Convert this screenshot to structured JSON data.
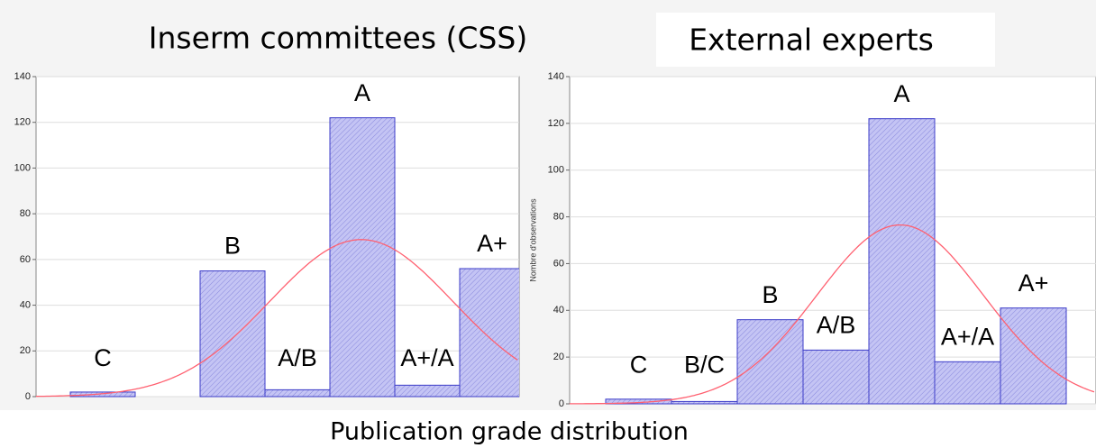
{
  "chart_data": [
    {
      "type": "bar",
      "title": "Inserm committees (CSS)",
      "categories": [
        "C",
        null,
        "B",
        "A/B",
        "A",
        "A+/A",
        "A+"
      ],
      "values": [
        2,
        0,
        55,
        3,
        122,
        5,
        56
      ],
      "color": "#b4b4f0",
      "edge_color": "#3c3cc8",
      "fit_color": "#ff6070",
      "ylim": [
        0,
        140
      ],
      "yticks": [
        0,
        20,
        40,
        60,
        80,
        100,
        120,
        140
      ]
    },
    {
      "type": "bar",
      "title": "External experts",
      "y_label": "Nombre d'observations",
      "categories": [
        "C",
        "B/C",
        "B",
        "A/B",
        "A",
        "A+/A",
        "A+"
      ],
      "values": [
        2,
        1,
        36,
        23,
        122,
        18,
        41
      ],
      "color": "#b4b4f0",
      "edge_color": "#3c3cc8",
      "fit_color": "#ff6070",
      "ylim": [
        0,
        140
      ],
      "yticks": [
        0,
        20,
        40,
        60,
        80,
        100,
        120,
        140
      ]
    }
  ],
  "footer": "Publication grade distribution"
}
